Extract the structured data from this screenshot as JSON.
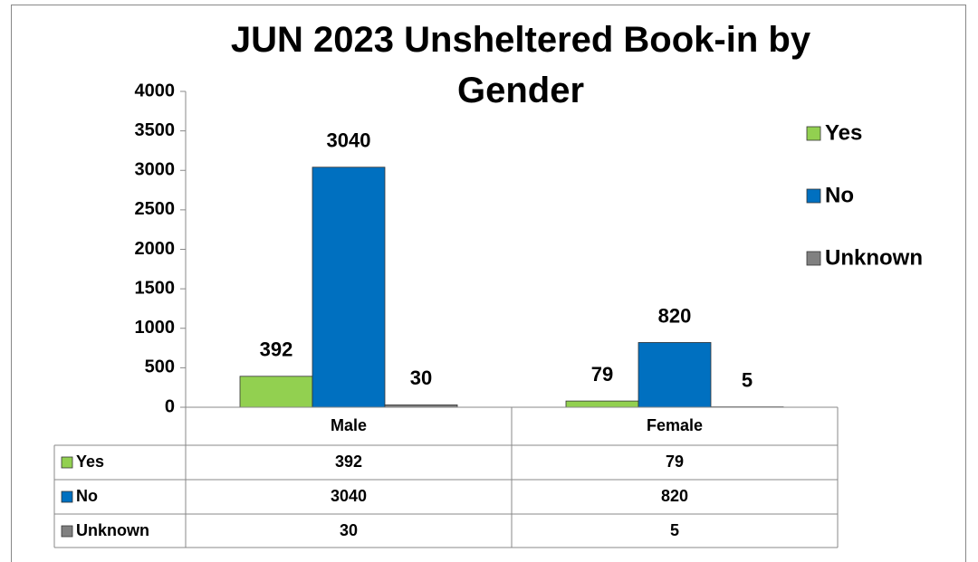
{
  "chart_data": {
    "type": "bar",
    "title": "JUN 2023 Unsheltered Book-in by Gender",
    "categories": [
      "Male",
      "Female"
    ],
    "series": [
      {
        "name": "Yes",
        "color": "#92d050",
        "values": [
          392,
          79
        ]
      },
      {
        "name": "No",
        "color": "#0070c0",
        "values": [
          3040,
          820
        ]
      },
      {
        "name": "Unknown",
        "color": "#808080",
        "values": [
          30,
          5
        ]
      }
    ],
    "ylim": [
      0,
      4000
    ],
    "yticks": [
      0,
      500,
      1000,
      1500,
      2000,
      2500,
      3000,
      3500,
      4000
    ],
    "grid": false,
    "legend": "right",
    "data_table": true
  }
}
